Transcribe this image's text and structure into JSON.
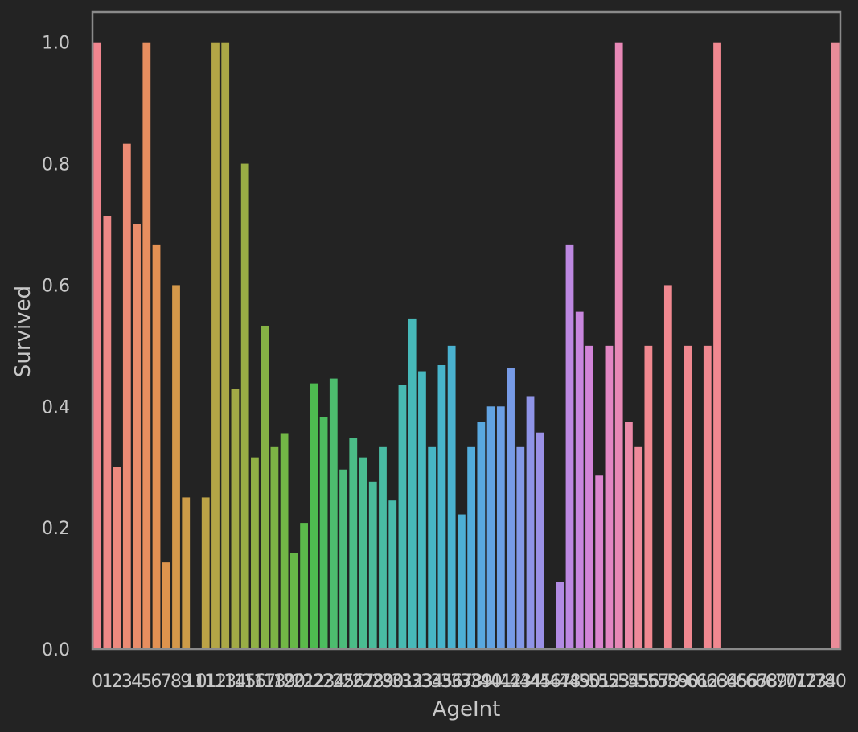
{
  "chart_data": {
    "type": "bar",
    "xlabel": "AgeInt",
    "ylabel": "Survived",
    "ylim": [
      0,
      1.05
    ],
    "yticks": [
      "0.0",
      "0.2",
      "0.4",
      "0.6",
      "0.8",
      "1.0"
    ],
    "grid": false,
    "categories": [
      "0",
      "1",
      "2",
      "3",
      "4",
      "5",
      "6",
      "7",
      "8",
      "9",
      "10",
      "11",
      "12",
      "13",
      "14",
      "15",
      "16",
      "17",
      "18",
      "19",
      "20",
      "21",
      "22",
      "23",
      "24",
      "25",
      "26",
      "27",
      "28",
      "29",
      "30",
      "31",
      "32",
      "33",
      "34",
      "35",
      "36",
      "37",
      "38",
      "39",
      "40",
      "41",
      "42",
      "43",
      "44",
      "45",
      "46",
      "47",
      "48",
      "49",
      "50",
      "51",
      "52",
      "53",
      "54",
      "55",
      "56",
      "57",
      "58",
      "59",
      "60",
      "61",
      "62",
      "63",
      "64",
      "65",
      "66",
      "67",
      "68",
      "69",
      "70",
      "71",
      "72",
      "73",
      "74",
      "80"
    ],
    "values": [
      1.0,
      0.714,
      0.3,
      0.833,
      0.7,
      1.0,
      0.667,
      0.143,
      0.6,
      0.25,
      0,
      0.25,
      1.0,
      1.0,
      0.429,
      0.8,
      0.316,
      0.533,
      0.333,
      0.356,
      0.158,
      0.208,
      0.438,
      0.382,
      0.446,
      0.296,
      0.348,
      0.316,
      0.276,
      0.333,
      0.245,
      0.436,
      0.545,
      0.458,
      0.333,
      0.468,
      0.5,
      0.222,
      0.333,
      0.375,
      0.4,
      0.4,
      0.463,
      0.333,
      0.417,
      0.357,
      0,
      0.111,
      0.667,
      0.556,
      0.5,
      0.286,
      0.5,
      1.0,
      0.375,
      0.333,
      0.5,
      0,
      0.6,
      0,
      0.5,
      0,
      0.5,
      1.0,
      0,
      0,
      0,
      0,
      0,
      0,
      0,
      0,
      0,
      0,
      0,
      1.0
    ],
    "colors": [
      "#f0868f",
      "#ee8887",
      "#ed897e",
      "#ec8b74",
      "#ea8d6a",
      "#e78e5f",
      "#e49153",
      "#dd944d",
      "#d4984a",
      "#cc9b48",
      "#c49f47",
      "#bca346",
      "#b3a646",
      "#aba846",
      "#a2aa46",
      "#99ad45",
      "#90b045",
      "#86b245",
      "#7cb445",
      "#72b646",
      "#67b848",
      "#5bba4b",
      "#4ebb50",
      "#4dbc5f",
      "#4dbc6e",
      "#4cbc7b",
      "#4bbc87",
      "#4abc91",
      "#4abb9b",
      "#49bba3",
      "#48baab",
      "#48bab2",
      "#47b9b9",
      "#47b8bf",
      "#47b6c5",
      "#48b4cb",
      "#4ab2d0",
      "#4dafd5",
      "#52acdb",
      "#59a8df",
      "#62a3e2",
      "#6c9fe4",
      "#779be6",
      "#8398e7",
      "#8f94e7",
      "#9b91e6",
      "#a78ee5",
      "#b28be3",
      "#bd88e1",
      "#c886de",
      "#d284d8",
      "#db85cf",
      "#e286c3",
      "#e788b6",
      "#eb89a8",
      "#ee8a9a",
      "#f08890",
      "#f08890",
      "#f08890",
      "#f08890",
      "#f08890",
      "#f08890",
      "#f08890",
      "#f08890",
      "#f08890",
      "#f08890",
      "#f08890",
      "#f08890",
      "#f08890",
      "#f08890",
      "#f08890",
      "#f08890",
      "#f08890",
      "#f08890",
      "#f08890",
      "#e98c99"
    ],
    "frame_color": "#8a8a8a"
  }
}
